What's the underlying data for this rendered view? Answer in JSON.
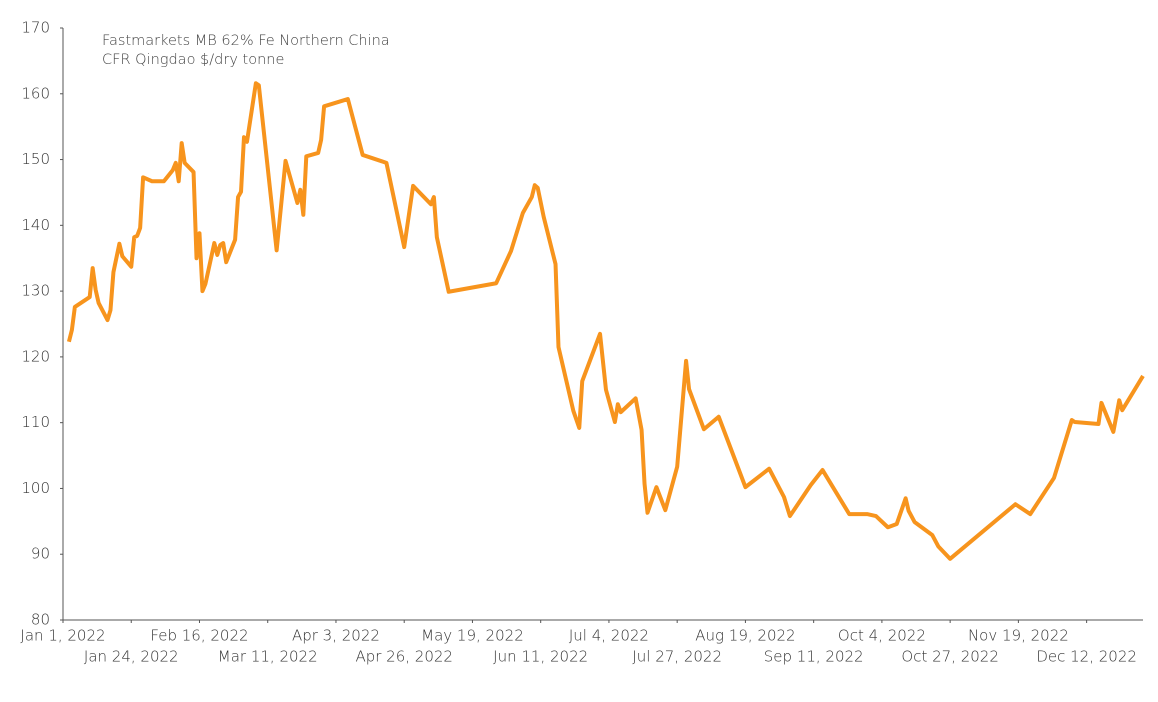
{
  "chart_data": {
    "type": "line",
    "title": [
      "Fastmarkets MB 62% Fe Northern China",
      "CFR Qingdao $/dry tonne"
    ],
    "x": [
      "2022-01-03",
      "2022-01-04",
      "2022-01-05",
      "2022-01-10",
      "2022-01-11",
      "2022-01-12",
      "2022-01-13",
      "2022-01-16",
      "2022-01-17",
      "2022-01-18",
      "2022-01-20",
      "2022-01-21",
      "2022-01-24",
      "2022-01-25",
      "2022-01-26",
      "2022-01-27",
      "2022-01-28",
      "2022-01-31",
      "2022-02-04",
      "2022-02-07",
      "2022-02-08",
      "2022-02-09",
      "2022-02-10",
      "2022-02-11",
      "2022-02-14",
      "2022-02-15",
      "2022-02-16",
      "2022-02-17",
      "2022-02-18",
      "2022-02-21",
      "2022-02-22",
      "2022-02-23",
      "2022-02-24",
      "2022-02-25",
      "2022-02-28",
      "2022-03-01",
      "2022-03-02",
      "2022-03-03",
      "2022-03-04",
      "2022-03-07",
      "2022-03-08",
      "2022-03-09",
      "2022-03-14",
      "2022-03-17",
      "2022-03-21",
      "2022-03-22",
      "2022-03-23",
      "2022-03-24",
      "2022-03-28",
      "2022-03-29",
      "2022-03-30",
      "2022-04-07",
      "2022-04-12",
      "2022-04-20",
      "2022-04-26",
      "2022-04-29",
      "2022-05-05",
      "2022-05-06",
      "2022-05-07",
      "2022-05-11",
      "2022-05-27",
      "2022-06-01",
      "2022-06-05",
      "2022-06-08",
      "2022-06-09",
      "2022-06-10",
      "2022-06-12",
      "2022-06-16",
      "2022-06-17",
      "2022-06-22",
      "2022-06-24",
      "2022-06-25",
      "2022-07-01",
      "2022-07-03",
      "2022-07-06",
      "2022-07-07",
      "2022-07-08",
      "2022-07-13",
      "2022-07-15",
      "2022-07-16",
      "2022-07-17",
      "2022-07-20",
      "2022-07-23",
      "2022-07-27",
      "2022-07-30",
      "2022-07-31",
      "2022-08-05",
      "2022-08-10",
      "2022-08-19",
      "2022-08-27",
      "2022-09-01",
      "2022-09-03",
      "2022-09-10",
      "2022-09-14",
      "2022-09-23",
      "2022-09-29",
      "2022-10-02",
      "2022-10-06",
      "2022-10-09",
      "2022-10-12",
      "2022-10-13",
      "2022-10-15",
      "2022-10-21",
      "2022-10-23",
      "2022-10-27",
      "2022-11-18",
      "2022-11-23",
      "2022-12-01",
      "2022-12-07",
      "2022-12-08",
      "2022-12-16",
      "2022-12-17",
      "2022-12-21",
      "2022-12-23",
      "2022-12-24",
      "2022-12-31"
    ],
    "series": [
      {
        "color": "#f7941d",
        "values": [
          122.3,
          124.1,
          127.6,
          129.1,
          133.5,
          130.2,
          128.2,
          125.6,
          127.1,
          132.9,
          137.2,
          135.3,
          133.7,
          138.2,
          138.4,
          139.6,
          147.3,
          146.7,
          146.7,
          148.4,
          149.5,
          146.7,
          152.5,
          149.5,
          148.1,
          135.0,
          138.8,
          130.0,
          131.1,
          137.3,
          135.5,
          137.0,
          137.3,
          134.4,
          137.8,
          144.3,
          145.1,
          153.4,
          152.7,
          161.6,
          161.3,
          157.1,
          136.2,
          149.8,
          143.4,
          145.4,
          141.6,
          150.5,
          151.0,
          153.0,
          158.1,
          159.2,
          150.7,
          149.5,
          136.7,
          146.0,
          143.2,
          144.3,
          138.2,
          129.9,
          131.2,
          136.1,
          141.9,
          144.3,
          146.1,
          145.7,
          141.3,
          134.1,
          121.5,
          111.8,
          109.2,
          116.3,
          123.5,
          115.0,
          110.1,
          112.8,
          111.6,
          113.7,
          108.9,
          100.7,
          96.3,
          100.2,
          96.7,
          103.3,
          119.4,
          115.1,
          109.0,
          110.9,
          100.2,
          103.0,
          98.7,
          95.8,
          100.5,
          102.8,
          96.1,
          96.1,
          95.8,
          94.1,
          94.6,
          98.5,
          96.6,
          94.9,
          92.9,
          91.2,
          89.3,
          97.6,
          96.1,
          101.6,
          110.4,
          110.1,
          109.8,
          113.0,
          108.6,
          113.4,
          111.9,
          117.1
        ]
      }
    ],
    "xlim": [
      "2022-01-01",
      "2022-12-31"
    ],
    "xticks": [
      {
        "value": "2022-01-01",
        "label": "Jan 1, 2022"
      },
      {
        "value": "2022-01-24",
        "label": "Jan 24, 2022"
      },
      {
        "value": "2022-02-16",
        "label": "Feb 16, 2022"
      },
      {
        "value": "2022-03-11",
        "label": "Mar 11, 2022"
      },
      {
        "value": "2022-04-03",
        "label": "Apr 3, 2022"
      },
      {
        "value": "2022-04-26",
        "label": "Apr 26, 2022"
      },
      {
        "value": "2022-05-19",
        "label": "May 19, 2022"
      },
      {
        "value": "2022-06-11",
        "label": "Jun 11, 2022"
      },
      {
        "value": "2022-07-04",
        "label": "Jul 4, 2022"
      },
      {
        "value": "2022-07-27",
        "label": "Jul 27, 2022"
      },
      {
        "value": "2022-08-19",
        "label": "Aug 19, 2022"
      },
      {
        "value": "2022-09-11",
        "label": "Sep 11, 2022"
      },
      {
        "value": "2022-10-04",
        "label": "Oct 4, 2022"
      },
      {
        "value": "2022-10-27",
        "label": "Oct 27, 2022"
      },
      {
        "value": "2022-11-19",
        "label": "Nov 19, 2022"
      },
      {
        "value": "2022-12-12",
        "label": "Dec 12, 2022"
      }
    ],
    "ylim": [
      80,
      170
    ],
    "yticks": [
      80,
      90,
      100,
      110,
      120,
      130,
      140,
      150,
      160,
      170
    ],
    "grid": false
  }
}
